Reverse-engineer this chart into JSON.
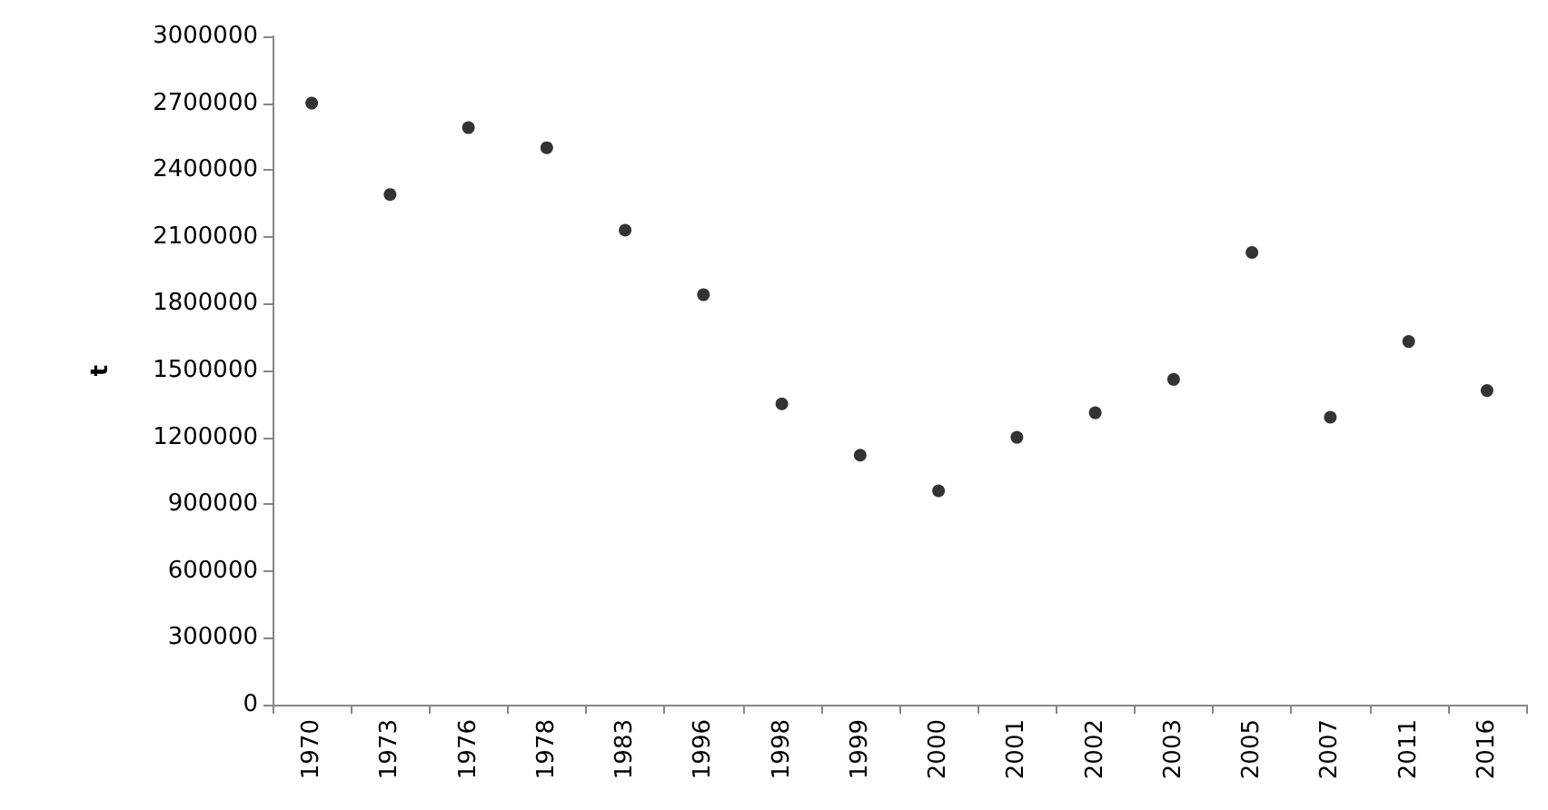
{
  "chart_data": {
    "type": "scatter",
    "ylabel": "t",
    "categories": [
      "1970",
      "1973",
      "1976",
      "1978",
      "1983",
      "1996",
      "1998",
      "1999",
      "2000",
      "2001",
      "2002",
      "2003",
      "2005",
      "2007",
      "2011",
      "2016"
    ],
    "series": [
      {
        "color": "#000000",
        "values": [
          2700000,
          2290000,
          2590000,
          2500000,
          2130000,
          1840000,
          1350000,
          1120000,
          960000,
          1200000,
          1310000,
          1460000,
          2030000,
          1290000,
          1630000,
          1410000
        ]
      }
    ],
    "ylim": [
      0,
      3000000
    ],
    "yticks": [
      0,
      300000,
      600000,
      900000,
      1200000,
      1500000,
      1800000,
      2100000,
      2400000,
      2700000,
      3000000
    ],
    "grid": false,
    "marker": "circle"
  }
}
